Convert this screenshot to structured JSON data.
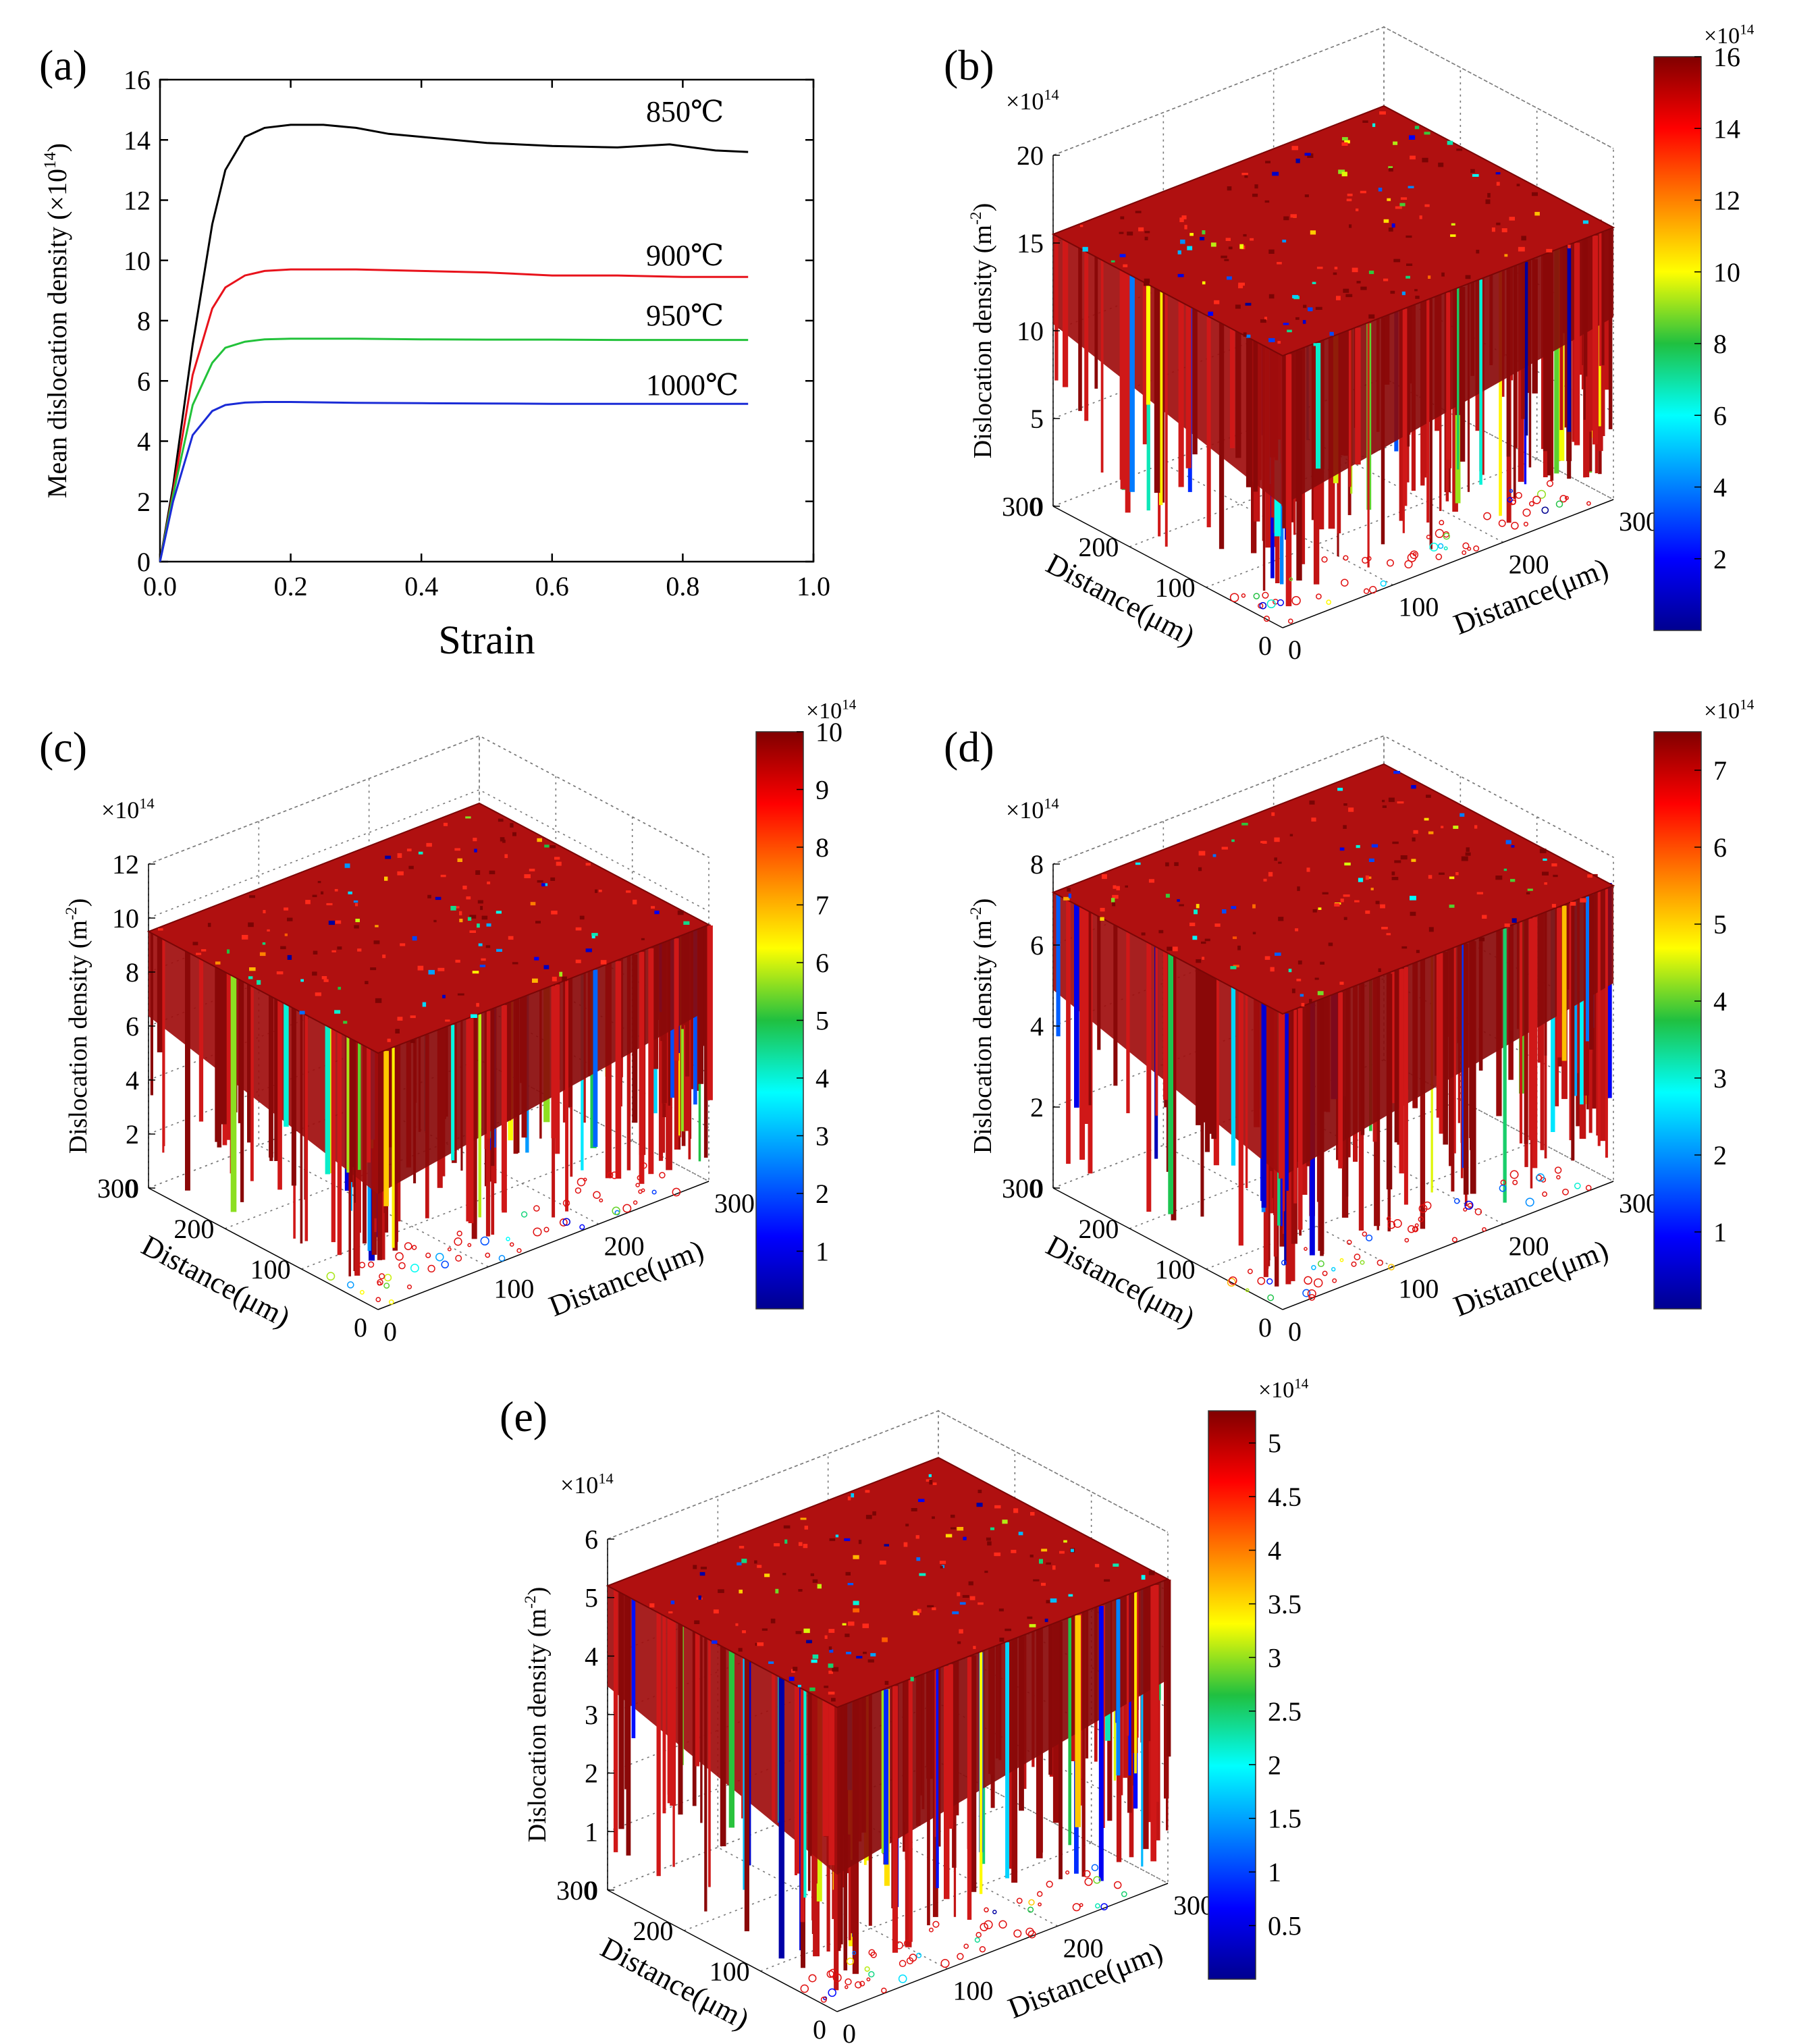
{
  "colors": {
    "line_850": "#000000",
    "line_900": "#e8121b",
    "line_950": "#22c23a",
    "line_1000": "#1a2bd6",
    "surface_top": "#b01010",
    "surface_dark": "#8a0a0a",
    "grid": "#777777"
  },
  "chart_data": [
    {
      "panel": "(a)",
      "type": "line",
      "xlabel": "Strain",
      "ylabel": "Mean dislocation density (×10",
      "ylabel_sup": "14",
      "ylabel_close": ")",
      "xlim": [
        0.0,
        1.0
      ],
      "ylim": [
        0,
        16
      ],
      "xticks": [
        "0.0",
        "0.2",
        "0.4",
        "0.6",
        "0.8",
        "1.0"
      ],
      "yticks": [
        "0",
        "2",
        "4",
        "6",
        "8",
        "10",
        "12",
        "14",
        "16"
      ],
      "grid": false,
      "series": [
        {
          "name": "850℃",
          "x": [
            0,
            0.02,
            0.05,
            0.08,
            0.1,
            0.13,
            0.16,
            0.2,
            0.25,
            0.3,
            0.35,
            0.4,
            0.5,
            0.6,
            0.7,
            0.78,
            0.85,
            0.9
          ],
          "y": [
            0,
            2.5,
            7.2,
            11.2,
            13.0,
            14.1,
            14.4,
            14.5,
            14.5,
            14.4,
            14.2,
            14.1,
            13.9,
            13.8,
            13.75,
            13.85,
            13.65,
            13.6
          ]
        },
        {
          "name": "900℃",
          "x": [
            0,
            0.02,
            0.05,
            0.08,
            0.1,
            0.13,
            0.16,
            0.2,
            0.3,
            0.4,
            0.5,
            0.6,
            0.7,
            0.8,
            0.9
          ],
          "y": [
            0,
            2.3,
            6.2,
            8.4,
            9.1,
            9.5,
            9.65,
            9.7,
            9.7,
            9.65,
            9.6,
            9.5,
            9.5,
            9.45,
            9.45
          ]
        },
        {
          "name": "950℃",
          "x": [
            0,
            0.02,
            0.05,
            0.08,
            0.1,
            0.13,
            0.16,
            0.2,
            0.3,
            0.4,
            0.5,
            0.6,
            0.7,
            0.8,
            0.9
          ],
          "y": [
            0,
            2.2,
            5.2,
            6.6,
            7.1,
            7.3,
            7.38,
            7.4,
            7.4,
            7.38,
            7.37,
            7.37,
            7.36,
            7.36,
            7.36
          ]
        },
        {
          "name": "1000℃",
          "x": [
            0,
            0.02,
            0.05,
            0.08,
            0.1,
            0.13,
            0.16,
            0.2,
            0.3,
            0.4,
            0.5,
            0.6,
            0.7,
            0.8,
            0.9
          ],
          "y": [
            0,
            2.0,
            4.2,
            5.0,
            5.2,
            5.28,
            5.3,
            5.3,
            5.27,
            5.26,
            5.25,
            5.24,
            5.24,
            5.24,
            5.24
          ]
        }
      ]
    },
    {
      "panel": "(b)",
      "type": "surface3d",
      "zlabel": "Dislocation density (m",
      "zlabel_sup": "-2",
      "zlabel_close": ")",
      "z_multiplier": "×10",
      "z_multiplier_sup": "14",
      "zticks": [
        "0",
        "5",
        "10",
        "15",
        "20"
      ],
      "zlim": [
        0,
        20
      ],
      "surface_level": 15.5,
      "xlabel": "Distance(μm)",
      "ylabel": "Distance(μm)",
      "xticks": [
        "0",
        "100",
        "200",
        "300"
      ],
      "yticks": [
        "0",
        "100",
        "200",
        "300"
      ],
      "colorbar": {
        "min": 0,
        "max": 16,
        "ticks": [
          "2",
          "4",
          "6",
          "8",
          "10",
          "12",
          "14",
          "16"
        ],
        "multiplier": "×10",
        "multiplier_sup": "14"
      }
    },
    {
      "panel": "(c)",
      "type": "surface3d",
      "zlabel": "Dislocation density (m",
      "zlabel_sup": "-2",
      "zlabel_close": ")",
      "z_multiplier": "×10",
      "z_multiplier_sup": "14",
      "zticks": [
        "0",
        "2",
        "4",
        "6",
        "8",
        "10",
        "12"
      ],
      "zlim": [
        0,
        12
      ],
      "surface_level": 9.5,
      "xlabel": "Distance(μm)",
      "ylabel": "Distance(μm)",
      "xticks": [
        "0",
        "100",
        "200",
        "300"
      ],
      "yticks": [
        "0",
        "100",
        "200",
        "300"
      ],
      "colorbar": {
        "min": 0,
        "max": 10,
        "ticks": [
          "1",
          "2",
          "3",
          "4",
          "5",
          "6",
          "7",
          "8",
          "9",
          "10"
        ],
        "multiplier": "×10",
        "multiplier_sup": "14"
      }
    },
    {
      "panel": "(d)",
      "type": "surface3d",
      "zlabel": "Dislocation density (m",
      "zlabel_sup": "-2",
      "zlabel_close": ")",
      "z_multiplier": "×10",
      "z_multiplier_sup": "14",
      "zticks": [
        "0",
        "2",
        "4",
        "6",
        "8"
      ],
      "zlim": [
        0,
        8
      ],
      "surface_level": 7.3,
      "xlabel": "Distance(μm)",
      "ylabel": "Distance(μm)",
      "xticks": [
        "0",
        "100",
        "200",
        "300"
      ],
      "yticks": [
        "0",
        "100",
        "200",
        "300"
      ],
      "colorbar": {
        "min": 0,
        "max": 7.5,
        "ticks": [
          "1",
          "2",
          "3",
          "4",
          "5",
          "6",
          "7"
        ],
        "multiplier": "×10",
        "multiplier_sup": "14"
      }
    },
    {
      "panel": "(e)",
      "type": "surface3d",
      "zlabel": "Dislocation density (m",
      "zlabel_sup": "-2",
      "zlabel_close": ")",
      "z_multiplier": "×10",
      "z_multiplier_sup": "14",
      "zticks": [
        "0",
        "1",
        "2",
        "3",
        "4",
        "5",
        "6"
      ],
      "zlim": [
        0,
        6
      ],
      "surface_level": 5.2,
      "xlabel": "Distance(μm)",
      "ylabel": "Distance(μm)",
      "xticks": [
        "0",
        "100",
        "200",
        "300"
      ],
      "yticks": [
        "0",
        "100",
        "200",
        "300"
      ],
      "colorbar": {
        "min": 0,
        "max": 5.3,
        "ticks": [
          "0.5",
          "1",
          "1.5",
          "2",
          "2.5",
          "3",
          "3.5",
          "4",
          "4.5",
          "5"
        ],
        "multiplier": "×10",
        "multiplier_sup": "14"
      }
    }
  ]
}
